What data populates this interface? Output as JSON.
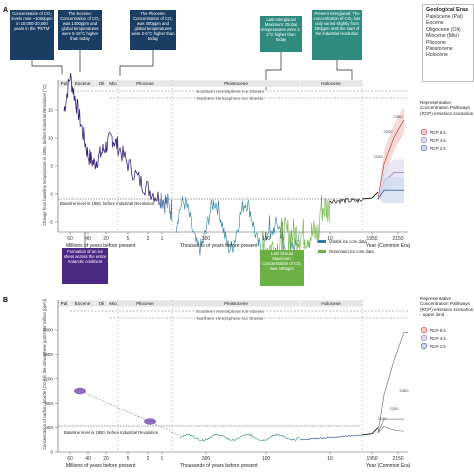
{
  "panel_a": {
    "label": "A",
    "ylabel": "Change from baseline temperature in 1850, before Industrial Revolution (°C)",
    "baseline_note": "Baseline level in 1850, before Industrial Revolution",
    "xlabel_myr": "Millions of years before present",
    "xlabel_kyr": "Thousands of years before present",
    "xlabel_ce": "Year (Common Era)",
    "yticks": [
      "15",
      "10",
      "5",
      "0",
      "-5"
    ],
    "xticks_myr": [
      "60",
      "40",
      "20"
    ],
    "xticks_myr_fine": [
      "5",
      "2",
      "1"
    ],
    "xticks_kyr": [
      "300",
      "100",
      "10"
    ],
    "xticks_ce": [
      "1950",
      "2150"
    ],
    "era_labels": [
      "Pal",
      "Eocene",
      "Oli",
      "Mio",
      "Pliocene",
      "Pleistocene",
      "Holocene"
    ],
    "ice_sheets": [
      "Southern Hemisphere Ice Sheets",
      "Northern Hemisphere Ice Sheets"
    ],
    "callouts": [
      "Concentration of CO₂ levels rose ~1000ppm in 10,000-20,000 years in the 'PETM'",
      "The Eocene: Concentration of CO₂ was 1400ppm and global temperatures were 5-15°C higher than today",
      "The Pliocene: Concentration of CO₂ was 400ppm and global temperatures were 2-5°C higher than today",
      "Last Interglacial Maximum: Global temperatures were 1-2°C higher than today",
      "Present Interglacial: The concentration of CO₂ has only varied slightly from 280ppm until the start of the industrial revolution"
    ],
    "bottom_callouts": [
      "Formation of an ice sheet across the entire Antarctic continent",
      "Last Glacial Maximum: Concentration of CO₂ was 180ppm"
    ],
    "ice_core_legend": [
      "Vostok ice core data",
      "Greenland ice core data"
    ],
    "projection_years": [
      "2300",
      "2200",
      "2100"
    ],
    "rcp_title": "Representative Concentration Pathways (RCP) emission scenarios",
    "rcp": [
      {
        "name": "RCP 8.5",
        "color": "#c0504d"
      },
      {
        "name": "RCP 4.5",
        "color": "#8e7cc3"
      },
      {
        "name": "RCP 2.6",
        "color": "#3d5fa8"
      }
    ]
  },
  "panel_b": {
    "label": "B",
    "ylabel": "Concentration of carbon dioxide (CO₂) in the atmosphere (parts per million (ppm))",
    "baseline_note": "Baseline level in 1850, before Industrial Revolution",
    "xlabel_myr": "Millions of years before present",
    "xlabel_kyr": "Thousands of years before present",
    "xlabel_ce": "Year (Common Era)",
    "yticks": [
      "2000",
      "1600",
      "1200",
      "800",
      "400",
      "0"
    ],
    "xticks_myr": [
      "60",
      "40",
      "20"
    ],
    "xticks_myr_fine": [
      "5",
      "2",
      "1"
    ],
    "xticks_kyr": [
      "300",
      "100",
      "10"
    ],
    "xticks_ce": [
      "1950",
      "2150"
    ],
    "era_labels": [
      "Pal",
      "Eocene",
      "Oli",
      "Mio",
      "Pliocene",
      "Pleistocene",
      "Holocene"
    ],
    "ice_sheets": [
      "Southern Hemisphere Ice Sheets",
      "Northern Hemisphere Ice Sheets"
    ],
    "projection_years": [
      "2300",
      "2200",
      "2100"
    ],
    "rcp_title": "Representative Concentration Pathways (RCP) emission scenarios - upper limit",
    "rcp": [
      {
        "name": "RCP 8.5",
        "color": "#c0504d"
      },
      {
        "name": "RCP 4.5",
        "color": "#8e7cc3"
      },
      {
        "name": "RCP 2.6",
        "color": "#3d5fa8"
      }
    ]
  },
  "geological_eras": {
    "title": "Geological Eras",
    "items": [
      "Paleocene (Pal)",
      "Eocene",
      "Oligocene (Oli)",
      "Miocene (Mio)",
      "Pliocene",
      "Pleistocene",
      "Holocene"
    ]
  },
  "colors": {
    "callout": "#1a3d63",
    "callout_teal": "#2e8b7e",
    "purple": "#4b2a86",
    "vostok": "#2e7f99",
    "greenland": "#6ab043",
    "era_bar": "#e6e6e6"
  },
  "chart_data": [
    {
      "type": "line",
      "title": "",
      "ylabel": "Change from baseline temperature in 1850, before Industrial Revolution (°C)",
      "ylim": [
        -7,
        16
      ],
      "series": [
        {
          "name": "",
          "x": [
            "60",
            "55",
            "50",
            "45",
            "40",
            "35",
            "30",
            "25",
            "20",
            "15",
            "10",
            "5",
            "2",
            "1"
          ],
          "values": [
            10,
            14,
            11,
            8,
            5,
            4,
            5,
            6,
            7,
            6,
            4,
            2,
            1,
            0
          ],
          "x_unit": "Millions of years before present"
        },
        {
          "name": "Vostok ice core data",
          "x": [
            "400",
            "300",
            "200",
            "100",
            "20",
            "10"
          ],
          "values": [
            0,
            -6,
            -2,
            -5,
            -7,
            0
          ],
          "x_unit": "Thousands of years before present"
        },
        {
          "name": "Greenland ice core data",
          "x": [
            "120",
            "100",
            "60",
            "20",
            "10"
          ],
          "values": [
            0,
            -4,
            -5,
            -6,
            0
          ],
          "x_unit": "Thousands of years before present"
        },
        {
          "name": "RCP 8.5",
          "x": [
            "1950",
            "2100",
            "2200",
            "2300"
          ],
          "values": [
            0,
            4,
            7,
            9
          ]
        },
        {
          "name": "RCP 4.5",
          "x": [
            "1950",
            "2100",
            "2200",
            "2300"
          ],
          "values": [
            0,
            2,
            3,
            3
          ]
        },
        {
          "name": "RCP 2.6",
          "x": [
            "1950",
            "2100",
            "2200",
            "2300"
          ],
          "values": [
            0,
            1,
            1,
            1
          ]
        }
      ]
    },
    {
      "type": "line",
      "title": "",
      "ylabel": "Concentration of carbon dioxide (CO₂) in the atmosphere (parts per million (ppm))",
      "ylim": [
        0,
        2000
      ],
      "series": [
        {
          "name": "",
          "x": [
            "60",
            "5"
          ],
          "values": [
            1000,
            500
          ],
          "x_unit": "Millions of years before present"
        },
        {
          "name": "",
          "x": [
            "400",
            "300",
            "200",
            "100",
            "20",
            "10"
          ],
          "values": [
            260,
            230,
            280,
            240,
            180,
            280
          ],
          "x_unit": "Thousands of years before present"
        },
        {
          "name": "RCP 8.5",
          "x": [
            "1950",
            "2100",
            "2200",
            "2300"
          ],
          "values": [
            310,
            940,
            1500,
            1960
          ]
        },
        {
          "name": "RCP 4.5",
          "x": [
            "1950",
            "2100",
            "2200",
            "2300"
          ],
          "values": [
            310,
            540,
            540,
            540
          ]
        },
        {
          "name": "RCP 2.6",
          "x": [
            "1950",
            "2100",
            "2200",
            "2300"
          ],
          "values": [
            310,
            420,
            360,
            340
          ]
        }
      ]
    }
  ]
}
